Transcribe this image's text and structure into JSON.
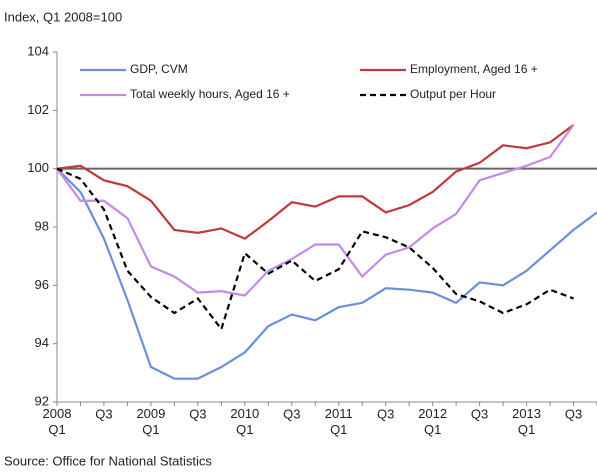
{
  "chart_data": {
    "type": "line",
    "title": "Index, Q1 2008=100",
    "source": "Source: Office for National Statistics",
    "categories": [
      "2008 Q1",
      null,
      "Q3",
      null,
      "2009 Q1",
      null,
      "Q3",
      null,
      "2010 Q1",
      null,
      "Q3",
      null,
      "2011 Q1",
      null,
      "Q3",
      null,
      "2012 Q1",
      null,
      "Q3",
      null,
      "2013 Q1",
      null,
      "Q3",
      null
    ],
    "ylim": [
      92,
      104
    ],
    "yticks": [
      92,
      94,
      96,
      98,
      100,
      102,
      104
    ],
    "reference_line": 100,
    "legend": "top",
    "series": [
      {
        "name": "GDP, CVM",
        "color": "#6a8fdc",
        "dashed": false,
        "values": [
          100,
          99.2,
          97.6,
          95.5,
          93.2,
          92.8,
          92.8,
          93.2,
          93.7,
          94.6,
          95.0,
          94.8,
          95.25,
          95.4,
          95.9,
          95.85,
          95.75,
          95.4,
          96.1,
          96.0,
          96.5,
          97.2,
          97.9,
          98.5
        ]
      },
      {
        "name": "Employment, Aged 16 +",
        "color": "#c0393b",
        "dashed": false,
        "values": [
          100,
          100.1,
          99.6,
          99.4,
          98.9,
          97.9,
          97.8,
          97.95,
          97.6,
          98.2,
          98.85,
          98.7,
          99.05,
          99.05,
          98.5,
          98.75,
          99.2,
          99.9,
          100.2,
          100.8,
          100.7,
          100.9,
          101.5,
          null
        ]
      },
      {
        "name": "Total weekly hours, Aged 16 +",
        "color": "#c58ae6",
        "dashed": false,
        "values": [
          100,
          98.9,
          98.9,
          98.3,
          96.65,
          96.3,
          95.75,
          95.8,
          95.65,
          96.5,
          96.9,
          97.4,
          97.4,
          96.3,
          97.05,
          97.3,
          97.95,
          98.45,
          99.6,
          99.85,
          100.1,
          100.4,
          101.5,
          null
        ]
      },
      {
        "name": "Output per Hour",
        "color": "#000000",
        "dashed": true,
        "values": [
          100,
          99.65,
          98.6,
          96.5,
          95.6,
          95.05,
          95.55,
          94.5,
          97.1,
          96.4,
          96.85,
          96.15,
          96.55,
          97.85,
          97.65,
          97.3,
          96.6,
          95.7,
          95.45,
          95.05,
          95.35,
          95.85,
          95.55,
          null
        ]
      }
    ]
  }
}
